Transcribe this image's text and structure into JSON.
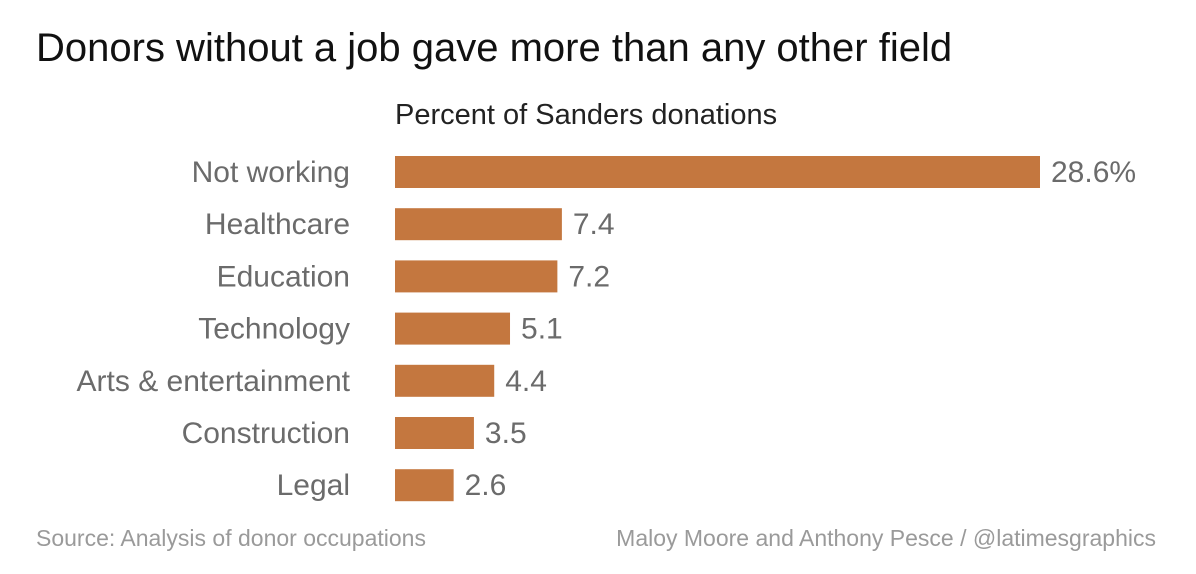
{
  "chart_data": {
    "type": "bar",
    "orientation": "horizontal",
    "title": "Donors without a job gave more than any other field",
    "subtitle": "Percent of Sanders donations",
    "categories": [
      "Not working",
      "Healthcare",
      "Education",
      "Technology",
      "Arts & entertainment",
      "Construction",
      "Legal"
    ],
    "values": [
      28.6,
      7.4,
      7.2,
      5.1,
      4.4,
      3.5,
      2.6
    ],
    "value_labels": [
      "28.6%",
      "7.4",
      "7.2",
      "5.1",
      "4.4",
      "3.5",
      "2.6"
    ],
    "bar_color": "#c4773f",
    "xlim": [
      0,
      28.6
    ],
    "grid": false,
    "legend": "none"
  },
  "footer": {
    "source": "Source: Analysis of donor occupations",
    "credit": "Maloy Moore and Anthony Pesce / @latimesgraphics"
  },
  "colors": {
    "category_label": "#6b6b6b",
    "value_label": "#6b6b6b",
    "footer": "#9a9a9a"
  }
}
